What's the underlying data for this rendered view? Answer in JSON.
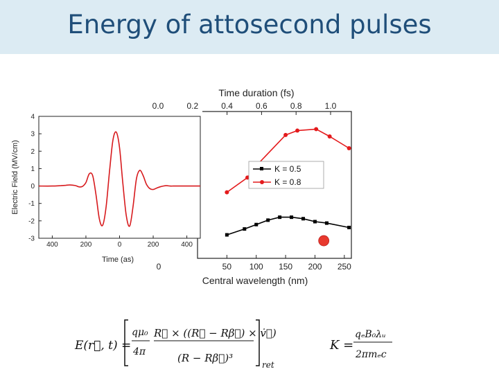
{
  "slide": {
    "title": "Energy of attosecond pulses"
  },
  "chart_data": [
    {
      "type": "line",
      "xlabel": "Central wavelength (nm)",
      "x2label": "Time duration (fs)",
      "xticks": [
        "50",
        "100",
        "150",
        "200",
        "250"
      ],
      "x2ticks": [
        "0.0",
        "0.2",
        "0.4",
        "0.6",
        "0.8",
        "1.0"
      ],
      "y_partial_tick": "0",
      "xlim": [
        0,
        262
      ],
      "ylim": [
        0,
        1
      ],
      "legend_position": "center-right",
      "series": [
        {
          "name": "K = 0.5",
          "color": "#000000",
          "marker": "square",
          "x": [
            50,
            80,
            100,
            120,
            140,
            160,
            180,
            200,
            220,
            258
          ],
          "y": [
            0.16,
            0.2,
            0.23,
            0.26,
            0.28,
            0.28,
            0.27,
            0.25,
            0.24,
            0.21
          ]
        },
        {
          "name": "K = 0.8",
          "color": "#e41a1c",
          "marker": "circle",
          "x": [
            50,
            85,
            100,
            150,
            170,
            202,
            225,
            258
          ],
          "y": [
            0.45,
            0.55,
            0.63,
            0.84,
            0.87,
            0.88,
            0.83,
            0.75
          ]
        }
      ],
      "highlight_point": {
        "x": 215,
        "y": 0.12,
        "color": "#e8392e"
      }
    },
    {
      "type": "line",
      "title": "",
      "xlabel": "Time (as)",
      "ylabel": "Electric Field (MV/cm)",
      "xticks": [
        "400",
        "200",
        "0",
        "200",
        "400"
      ],
      "xtick_values": [
        -400,
        -200,
        0,
        200,
        400
      ],
      "yticks": [
        "-3",
        "-2",
        "-1",
        "0",
        "1",
        "2",
        "3",
        "4"
      ],
      "ytick_values": [
        -3,
        -2,
        -1,
        0,
        1,
        2,
        3,
        4
      ],
      "xlim": [
        -480,
        480
      ],
      "ylim": [
        -3,
        4
      ],
      "series": [
        {
          "color": "#d7191c",
          "x": [
            -480,
            -400,
            -350,
            -320,
            -300,
            -280,
            -260,
            -240,
            -220,
            -200,
            -180,
            -160,
            -140,
            -120,
            -100,
            -80,
            -60,
            -40,
            -20,
            0,
            20,
            40,
            60,
            80,
            100,
            120,
            140,
            160,
            180,
            200,
            220,
            240,
            260,
            280,
            300,
            320,
            350,
            400,
            480
          ],
          "y": [
            0,
            0,
            0.02,
            0.04,
            0.06,
            0.05,
            0.02,
            -0.05,
            -0.02,
            0.2,
            0.7,
            0.6,
            -0.5,
            -1.9,
            -2.25,
            -1.2,
            0.8,
            2.6,
            3.1,
            2.2,
            0.1,
            -1.7,
            -2.3,
            -1.2,
            0.4,
            0.9,
            0.6,
            0.1,
            -0.15,
            -0.2,
            -0.12,
            -0.05,
            0,
            0.02,
            0,
            0,
            0,
            0,
            0
          ]
        }
      ]
    }
  ],
  "equations": {
    "field": "E(r⃗, t) = [ qμ₀/4π · R⃗ × ((R⃗ − Rβ⃗) × v̇⃗) / (R − Rβ⃗)³ ]ret",
    "k": "K = qₑB₀λᵤ / 2πmₑc"
  }
}
